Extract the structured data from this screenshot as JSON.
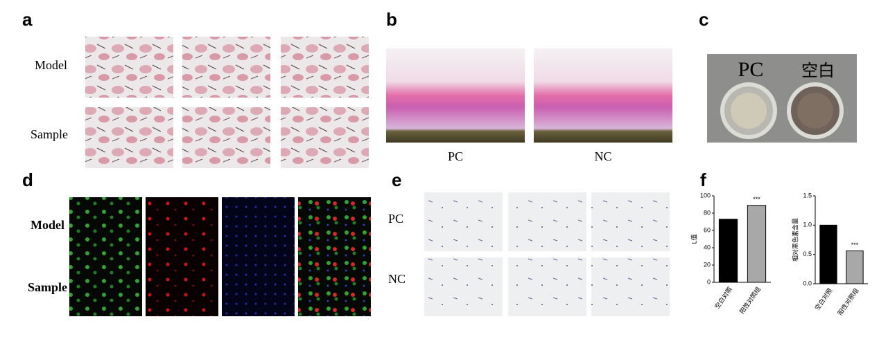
{
  "figure": {
    "panel_labels": [
      "a",
      "b",
      "c",
      "d",
      "e",
      "f"
    ],
    "a": {
      "rows": [
        "Model",
        "Sample"
      ]
    },
    "b": {
      "columns": [
        "PC",
        "NC"
      ]
    },
    "c": {
      "photo_texts": [
        "PC",
        "空白"
      ]
    },
    "d": {
      "rows": [
        "Model",
        "Sample"
      ]
    },
    "e": {
      "rows": [
        "PC",
        "NC"
      ]
    }
  },
  "chart_data": [
    {
      "type": "bar",
      "ylabel": "L值",
      "categories": [
        "空白对照",
        "阳性对照组"
      ],
      "values": [
        73,
        89
      ],
      "colors": [
        "#000000",
        "#a8a8a8"
      ],
      "ylim": [
        0,
        100
      ],
      "yticks": [
        0,
        20,
        40,
        60,
        80,
        100
      ],
      "annotations": [
        {
          "text": "***",
          "category": "阳性对照组"
        }
      ]
    },
    {
      "type": "bar",
      "ylabel": "相对黑色素含量",
      "categories": [
        "空白对照",
        "阳性对照组"
      ],
      "values": [
        1.0,
        0.56
      ],
      "colors": [
        "#000000",
        "#a8a8a8"
      ],
      "ylim": [
        0,
        1.5
      ],
      "yticks": [
        {
          "value": 0,
          "label": "0.0"
        },
        0.5,
        {
          "value": 1.0,
          "label": "1.0"
        },
        1.5
      ],
      "annotations": [
        {
          "text": "***",
          "category": "阳性对照组"
        }
      ]
    }
  ]
}
